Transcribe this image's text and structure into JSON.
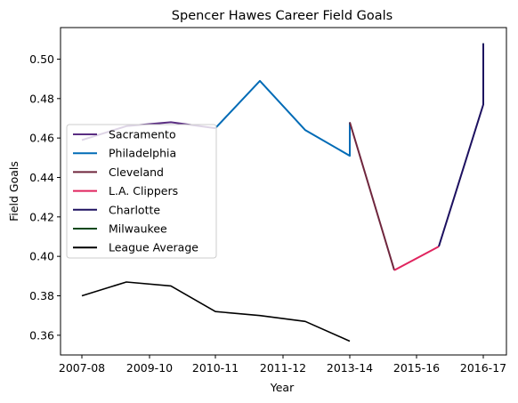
{
  "chart_data": {
    "type": "line",
    "title": "Spencer Hawes Career Field Goals",
    "xlabel": "Year",
    "ylabel": "Field Goals",
    "x_tick_labels": [
      "2007-08",
      "2009-10",
      "2010-11",
      "2011-12",
      "2013-14",
      "2015-16",
      "2016-17"
    ],
    "y_ticks": [
      0.36,
      0.38,
      0.4,
      0.42,
      0.44,
      0.46,
      0.48,
      0.5
    ],
    "ylim": [
      0.35,
      0.516
    ],
    "legend_position": "center-left",
    "grid": false,
    "series": [
      {
        "name": "Sacramento",
        "color": "#5a2d82",
        "points": [
          [
            0,
            0.459
          ],
          [
            1,
            0.466
          ],
          [
            2,
            0.468
          ],
          [
            3,
            0.465
          ]
        ]
      },
      {
        "name": "Philadelphia",
        "color": "#006bb6",
        "points": [
          [
            3,
            0.465
          ],
          [
            4,
            0.489
          ],
          [
            5,
            0.464
          ],
          [
            6,
            0.451
          ],
          [
            6,
            0.468
          ]
        ]
      },
      {
        "name": "Cleveland",
        "color": "#6f263d",
        "points": [
          [
            6,
            0.468
          ],
          [
            7,
            0.393
          ]
        ]
      },
      {
        "name": "L.A. Clippers",
        "color": "#e0245e",
        "points": [
          [
            7,
            0.393
          ],
          [
            8,
            0.405
          ]
        ]
      },
      {
        "name": "Charlotte",
        "color": "#1d1160",
        "points": [
          [
            8,
            0.405
          ],
          [
            9,
            0.477
          ],
          [
            9,
            0.508
          ]
        ]
      },
      {
        "name": "Milwaukee",
        "color": "#00471b",
        "points": [
          [
            9,
            0.477
          ],
          [
            9,
            0.508
          ]
        ]
      },
      {
        "name": "League Average",
        "color": "#000000",
        "points": [
          [
            0,
            0.38
          ],
          [
            1,
            0.387
          ],
          [
            2,
            0.385
          ],
          [
            3,
            0.372
          ],
          [
            4,
            0.37
          ],
          [
            5,
            0.367
          ],
          [
            6,
            0.357
          ]
        ]
      }
    ]
  }
}
